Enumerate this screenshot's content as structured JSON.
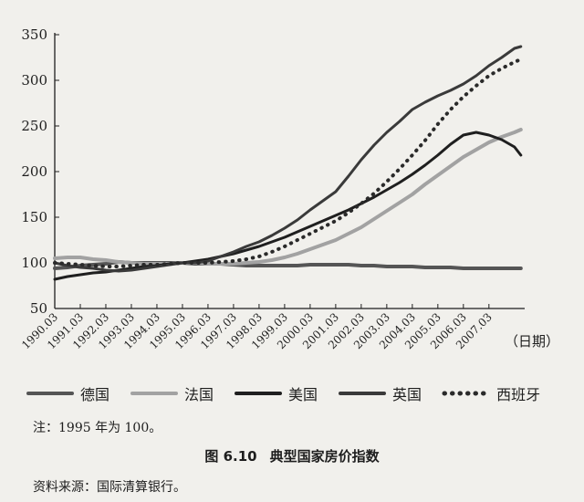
{
  "chart_data": {
    "type": "line",
    "y_ticks": [
      50,
      100,
      150,
      200,
      250,
      300,
      350
    ],
    "ylim": [
      50,
      350
    ],
    "x_ticks": [
      "1990.03",
      "1991.03",
      "1992.03",
      "1993.03",
      "1994.03",
      "1995.03",
      "1996.03",
      "1997.03",
      "1998.03",
      "1999.03",
      "2000.03",
      "2001.03",
      "2002.03",
      "2003.03",
      "2004.03",
      "2005.03",
      "2006.03",
      "2007.03"
    ],
    "x_unit_label": "（日期）",
    "x": [
      1990.0,
      1990.5,
      1991.0,
      1991.5,
      1992.0,
      1992.5,
      1993.0,
      1993.5,
      1994.0,
      1994.5,
      1995.0,
      1995.5,
      1996.0,
      1996.5,
      1997.0,
      1997.5,
      1998.0,
      1998.5,
      1999.0,
      1999.5,
      2000.0,
      2000.5,
      2001.0,
      2001.5,
      2002.0,
      2002.5,
      2003.0,
      2003.5,
      2004.0,
      2004.5,
      2005.0,
      2005.5,
      2006.0,
      2006.5,
      2007.0,
      2007.5,
      2008.0,
      2008.25
    ],
    "series": [
      {
        "name": "德国",
        "style": "solid",
        "color": "#555555",
        "width": 4,
        "values": [
          94,
          95,
          97,
          98,
          99,
          101,
          100,
          100,
          100,
          100,
          100,
          99,
          99,
          99,
          98,
          97,
          97,
          97,
          97,
          97,
          98,
          98,
          98,
          98,
          97,
          97,
          96,
          96,
          96,
          95,
          95,
          95,
          94,
          94,
          94,
          94,
          94,
          94
        ]
      },
      {
        "name": "法国",
        "style": "solid",
        "color": "#a2a2a2",
        "width": 4,
        "values": [
          105,
          106,
          106,
          104,
          103,
          101,
          100,
          99,
          99,
          99,
          100,
          100,
          99,
          99,
          99,
          100,
          101,
          103,
          106,
          110,
          115,
          120,
          125,
          132,
          139,
          148,
          157,
          166,
          175,
          186,
          196,
          206,
          216,
          224,
          232,
          238,
          243,
          246
        ]
      },
      {
        "name": "美国",
        "style": "solid",
        "color": "#1f1f1f",
        "width": 3,
        "values": [
          82,
          85,
          87,
          89,
          90,
          92,
          94,
          96,
          97,
          99,
          100,
          102,
          104,
          107,
          110,
          114,
          118,
          123,
          128,
          134,
          140,
          146,
          152,
          158,
          165,
          172,
          180,
          188,
          197,
          207,
          218,
          230,
          240,
          243,
          240,
          235,
          227,
          218
        ]
      },
      {
        "name": "英国",
        "style": "solid",
        "color": "#3a3a3a",
        "width": 3,
        "values": [
          100,
          97,
          95,
          94,
          92,
          91,
          92,
          94,
          96,
          98,
          100,
          100,
          102,
          107,
          112,
          118,
          123,
          130,
          138,
          147,
          158,
          168,
          178,
          195,
          213,
          229,
          243,
          255,
          268,
          276,
          283,
          289,
          296,
          305,
          316,
          325,
          335,
          337
        ]
      },
      {
        "name": "西班牙",
        "style": "dotted",
        "color": "#2a2a2a",
        "width": 4,
        "values": [
          100,
          99,
          98,
          97,
          96,
          96,
          97,
          98,
          98,
          99,
          100,
          100,
          100,
          101,
          102,
          104,
          107,
          112,
          118,
          125,
          132,
          139,
          146,
          155,
          165,
          176,
          189,
          203,
          218,
          234,
          252,
          268,
          282,
          294,
          305,
          313,
          320,
          323
        ]
      }
    ]
  },
  "note": "注：1995 年为 100。",
  "caption": {
    "number": "图 6.10",
    "title": "典型国家房价指数"
  },
  "source": "资料来源：国际清算银行。"
}
